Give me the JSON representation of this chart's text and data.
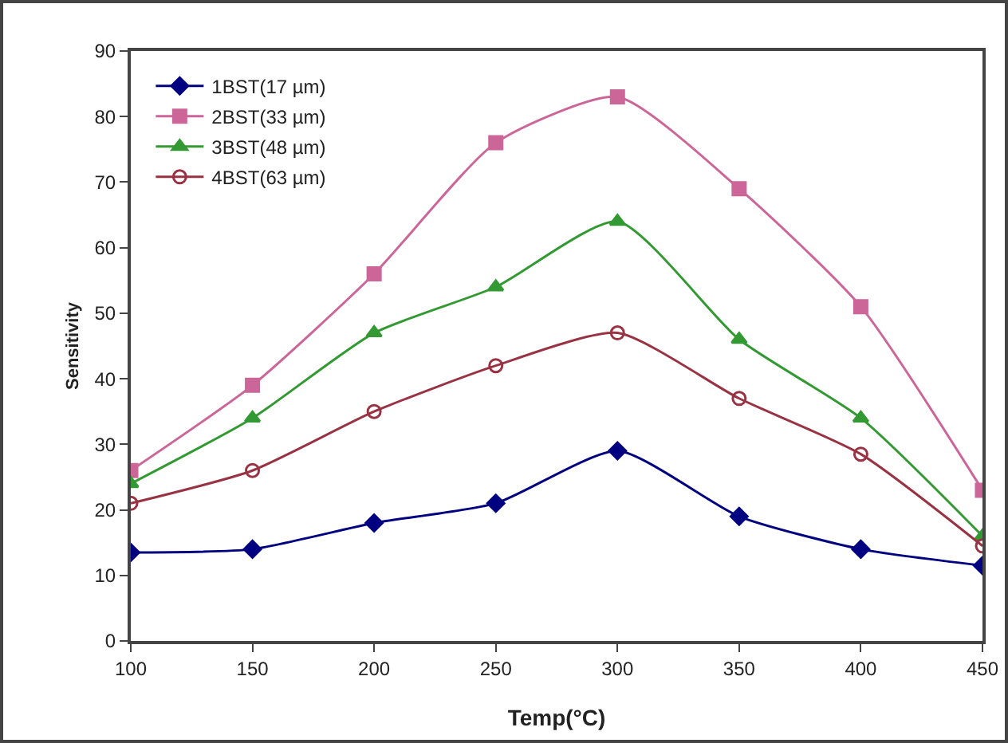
{
  "chart_data": {
    "type": "line",
    "xlabel": "Temp(°C)",
    "ylabel": "Sensitivity",
    "x": [
      100,
      150,
      200,
      250,
      300,
      350,
      400,
      450
    ],
    "series": [
      {
        "name": "1BST(17 µm)",
        "color": "#000080",
        "marker": "diamond",
        "values": [
          13.5,
          14,
          18,
          21,
          29,
          19,
          14,
          11.5
        ]
      },
      {
        "name": "2BST(33 µm)",
        "color": "#cc6699",
        "marker": "square",
        "values": [
          26,
          39,
          56,
          76,
          83,
          69,
          51,
          23
        ]
      },
      {
        "name": "3BST(48 µm)",
        "color": "#339933",
        "marker": "triangle",
        "values": [
          24,
          34,
          47,
          54,
          64,
          46,
          34,
          16
        ]
      },
      {
        "name": "4BST(63 µm)",
        "color": "#993344",
        "marker": "circle",
        "values": [
          21,
          26,
          35,
          42,
          47,
          37,
          28.5,
          14.5
        ]
      }
    ],
    "xlim": [
      100,
      450
    ],
    "xticks": [
      100,
      150,
      200,
      250,
      300,
      350,
      400,
      450
    ],
    "ylim": [
      0,
      90
    ],
    "yticks": [
      0,
      10,
      20,
      30,
      40,
      50,
      60,
      70,
      80,
      90
    ],
    "grid": false,
    "legend": "top left",
    "line_style": "solid"
  }
}
